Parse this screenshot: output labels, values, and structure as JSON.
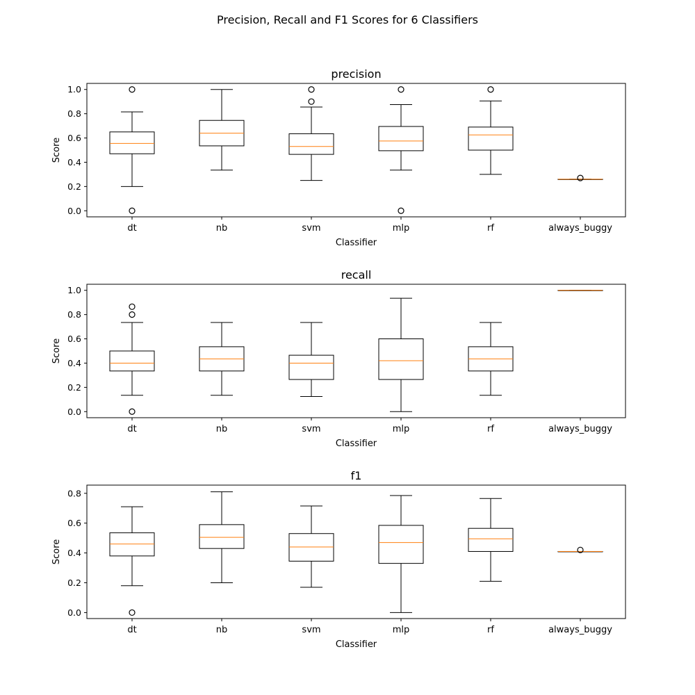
{
  "figure": {
    "suptitle": "Precision, Recall and F1 Scores for 6 Classifiers"
  },
  "colors": {
    "box": "#000000",
    "median": "#ff7f0e",
    "background": "#ffffff"
  },
  "chart_data": [
    {
      "type": "boxplot",
      "title": "precision",
      "xlabel": "Classifier",
      "ylabel": "Score",
      "ylim": [
        -0.05,
        1.05
      ],
      "yticks": [
        0.0,
        0.2,
        0.4,
        0.6,
        0.8,
        1.0
      ],
      "ytick_labels": [
        "0.0",
        "0.2",
        "0.4",
        "0.6",
        "0.8",
        "1.0"
      ],
      "categories": [
        "dt",
        "nb",
        "svm",
        "mlp",
        "rf",
        "always_buggy"
      ],
      "boxes": [
        {
          "whislo": 0.2,
          "q1": 0.47,
          "med": 0.555,
          "q3": 0.65,
          "whishi": 0.815,
          "fliers": [
            0.0,
            1.0
          ]
        },
        {
          "whislo": 0.335,
          "q1": 0.535,
          "med": 0.64,
          "q3": 0.745,
          "whishi": 1.0,
          "fliers": []
        },
        {
          "whislo": 0.25,
          "q1": 0.465,
          "med": 0.53,
          "q3": 0.635,
          "whishi": 0.855,
          "fliers": [
            0.9,
            1.0
          ]
        },
        {
          "whislo": 0.335,
          "q1": 0.495,
          "med": 0.575,
          "q3": 0.695,
          "whishi": 0.875,
          "fliers": [
            0.0,
            1.0
          ]
        },
        {
          "whislo": 0.3,
          "q1": 0.5,
          "med": 0.625,
          "q3": 0.69,
          "whishi": 0.905,
          "fliers": [
            1.0
          ]
        },
        {
          "whislo": 0.26,
          "q1": 0.26,
          "med": 0.26,
          "q3": 0.26,
          "whishi": 0.26,
          "fliers": [
            0.27
          ]
        }
      ]
    },
    {
      "type": "boxplot",
      "title": "recall",
      "xlabel": "Classifier",
      "ylabel": "Score",
      "ylim": [
        -0.05,
        1.05
      ],
      "yticks": [
        0.0,
        0.2,
        0.4,
        0.6,
        0.8,
        1.0
      ],
      "ytick_labels": [
        "0.0",
        "0.2",
        "0.4",
        "0.6",
        "0.8",
        "1.0"
      ],
      "categories": [
        "dt",
        "nb",
        "svm",
        "mlp",
        "rf",
        "always_buggy"
      ],
      "boxes": [
        {
          "whislo": 0.135,
          "q1": 0.335,
          "med": 0.4,
          "q3": 0.5,
          "whishi": 0.735,
          "fliers": [
            0.0,
            0.8,
            0.865
          ]
        },
        {
          "whislo": 0.135,
          "q1": 0.335,
          "med": 0.435,
          "q3": 0.535,
          "whishi": 0.735,
          "fliers": []
        },
        {
          "whislo": 0.125,
          "q1": 0.265,
          "med": 0.4,
          "q3": 0.465,
          "whishi": 0.735,
          "fliers": []
        },
        {
          "whislo": 0.0,
          "q1": 0.265,
          "med": 0.42,
          "q3": 0.6,
          "whishi": 0.935,
          "fliers": []
        },
        {
          "whislo": 0.135,
          "q1": 0.335,
          "med": 0.435,
          "q3": 0.535,
          "whishi": 0.735,
          "fliers": []
        },
        {
          "whislo": 1.0,
          "q1": 1.0,
          "med": 1.0,
          "q3": 1.0,
          "whishi": 1.0,
          "fliers": []
        }
      ]
    },
    {
      "type": "boxplot",
      "title": "f1",
      "xlabel": "Classifier",
      "ylabel": "Score",
      "ylim": [
        -0.04,
        0.855
      ],
      "yticks": [
        0.0,
        0.2,
        0.4,
        0.6,
        0.8
      ],
      "ytick_labels": [
        "0.0",
        "0.2",
        "0.4",
        "0.6",
        "0.8"
      ],
      "categories": [
        "dt",
        "nb",
        "svm",
        "mlp",
        "rf",
        "always_buggy"
      ],
      "boxes": [
        {
          "whislo": 0.18,
          "q1": 0.38,
          "med": 0.46,
          "q3": 0.535,
          "whishi": 0.71,
          "fliers": [
            0.0
          ]
        },
        {
          "whislo": 0.2,
          "q1": 0.43,
          "med": 0.505,
          "q3": 0.59,
          "whishi": 0.81,
          "fliers": []
        },
        {
          "whislo": 0.17,
          "q1": 0.345,
          "med": 0.44,
          "q3": 0.53,
          "whishi": 0.715,
          "fliers": []
        },
        {
          "whislo": 0.0,
          "q1": 0.33,
          "med": 0.47,
          "q3": 0.585,
          "whishi": 0.785,
          "fliers": []
        },
        {
          "whislo": 0.21,
          "q1": 0.41,
          "med": 0.495,
          "q3": 0.565,
          "whishi": 0.765,
          "fliers": []
        },
        {
          "whislo": 0.41,
          "q1": 0.41,
          "med": 0.41,
          "q3": 0.41,
          "whishi": 0.41,
          "fliers": [
            0.42
          ]
        }
      ]
    }
  ]
}
